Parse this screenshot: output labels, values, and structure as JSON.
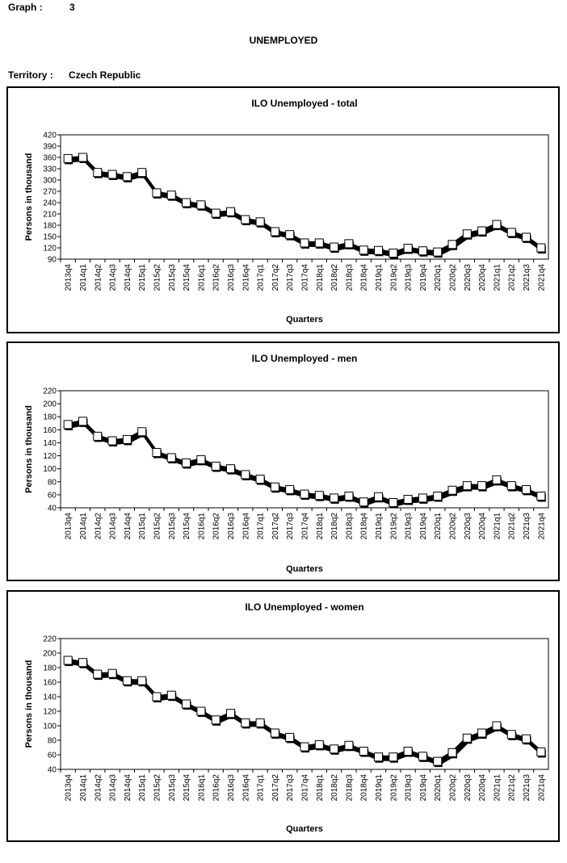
{
  "header": {
    "graph_label": "Graph :",
    "graph_number": "3",
    "title": "UNEMPLOYED",
    "territory_label": "Territory :",
    "territory_value": "Czech Republic"
  },
  "colors": {
    "line": "#000000",
    "marker_fill": "#ffffff",
    "background": "#ffffff"
  },
  "chart_data": [
    {
      "type": "line",
      "title": "ILO Unemployed - total",
      "xlabel": "Quarters",
      "ylabel": "Persons in thousand",
      "ylim": [
        90,
        420
      ],
      "yticks": [
        90,
        120,
        150,
        180,
        210,
        240,
        270,
        300,
        330,
        360,
        390,
        420
      ],
      "grid": false,
      "categories": [
        "2013q4",
        "2014q1",
        "2014q2",
        "2014q3",
        "2014q4",
        "2015q1",
        "2015q2",
        "2015q3",
        "2015q4",
        "2016q1",
        "2016q2",
        "2016q3",
        "2016q4",
        "2017q1",
        "2017q2",
        "2017q3",
        "2017q4",
        "2018q1",
        "2018q2",
        "2018q3",
        "2018q4",
        "2019q1",
        "2019q2",
        "2019q3",
        "2019q4",
        "2020q1",
        "2020q2",
        "2020q3",
        "2020q4",
        "2021q1",
        "2021q2",
        "2021q3",
        "2021q4"
      ],
      "values": [
        357,
        360,
        320,
        315,
        309,
        320,
        266,
        260,
        240,
        234,
        212,
        216,
        195,
        189,
        163,
        155,
        133,
        133,
        122,
        131,
        114,
        113,
        106,
        119,
        112,
        109,
        129,
        157,
        165,
        182,
        161,
        148,
        120
      ]
    },
    {
      "type": "line",
      "title": "ILO Unemployed - men",
      "xlabel": "Quarters",
      "ylabel": "Persons in thousand",
      "ylim": [
        40,
        220
      ],
      "yticks": [
        40,
        60,
        80,
        100,
        120,
        140,
        160,
        180,
        200,
        220
      ],
      "grid": false,
      "categories": [
        "2013q4",
        "2014q1",
        "2014q2",
        "2014q3",
        "2014q4",
        "2015q1",
        "2015q2",
        "2015q3",
        "2015q4",
        "2016q1",
        "2016q2",
        "2016q3",
        "2016q4",
        "2017q1",
        "2017q2",
        "2017q3",
        "2017q4",
        "2018q1",
        "2018q2",
        "2018q3",
        "2018q4",
        "2019q1",
        "2019q2",
        "2019q3",
        "2019q4",
        "2020q1",
        "2020q2",
        "2020q3",
        "2020q4",
        "2021q1",
        "2021q2",
        "2021q3",
        "2021q4"
      ],
      "values": [
        168,
        173,
        150,
        143,
        145,
        157,
        125,
        117,
        109,
        114,
        104,
        100,
        91,
        84,
        72,
        68,
        61,
        59,
        55,
        58,
        49,
        57,
        48,
        53,
        55,
        58,
        67,
        74,
        74,
        83,
        74,
        68,
        58
      ]
    },
    {
      "type": "line",
      "title": "ILO Unemployed - women",
      "xlabel": "Quarters",
      "ylabel": "Persons in thousand",
      "ylim": [
        40,
        220
      ],
      "yticks": [
        40,
        60,
        80,
        100,
        120,
        140,
        160,
        180,
        200,
        220
      ],
      "grid": false,
      "categories": [
        "2013q4",
        "2014q1",
        "2014q2",
        "2014q3",
        "2014q4",
        "2015q1",
        "2015q2",
        "2015q3",
        "2015q4",
        "2016q1",
        "2016q2",
        "2016q3",
        "2016q4",
        "2017q1",
        "2017q2",
        "2017q3",
        "2017q4",
        "2018q1",
        "2018q2",
        "2018q3",
        "2018q4",
        "2019q1",
        "2019q2",
        "2019q3",
        "2019q4",
        "2020q1",
        "2020q2",
        "2020q3",
        "2020q4",
        "2021q1",
        "2021q2",
        "2021q3",
        "2021q4"
      ],
      "values": [
        190,
        187,
        171,
        172,
        162,
        162,
        140,
        142,
        130,
        120,
        108,
        117,
        104,
        104,
        90,
        84,
        71,
        74,
        68,
        73,
        65,
        57,
        57,
        65,
        58,
        51,
        63,
        83,
        90,
        100,
        88,
        82,
        64
      ]
    }
  ]
}
